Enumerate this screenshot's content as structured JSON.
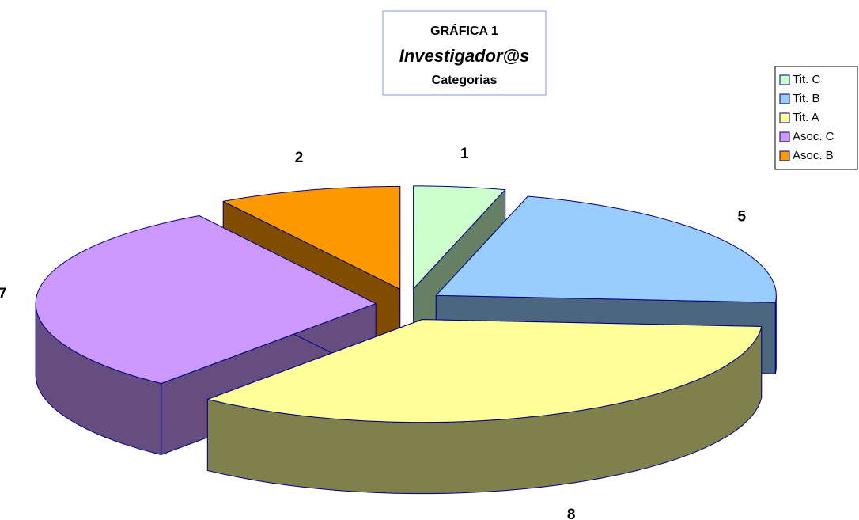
{
  "chart_data": {
    "type": "pie3d",
    "title_lines": [
      "GRÁFICA 1",
      "Investigador@s",
      "Categorias"
    ],
    "categories": [
      "Tit. C",
      "Tit. B",
      "Tit. A",
      "Asoc. C",
      "Asoc. B"
    ],
    "values": [
      1,
      5,
      8,
      7,
      2
    ],
    "colors": [
      "#ccffcc",
      "#99ccff",
      "#ffff99",
      "#cc99ff",
      "#ff9900"
    ],
    "legend": "top-right"
  }
}
